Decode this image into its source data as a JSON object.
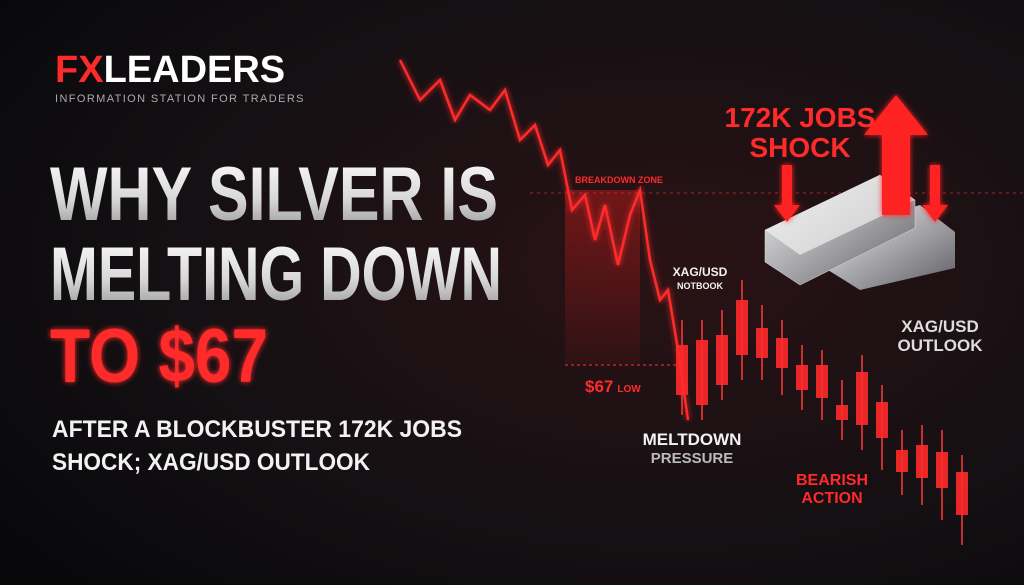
{
  "logo": {
    "fx": "FX",
    "leaders": "LEADERS",
    "tagline": "INFORMATION STATION FOR TRADERS"
  },
  "headline": {
    "line1": "WHY SILVER IS",
    "line2": "MELTING DOWN",
    "line3": "TO $67"
  },
  "subtitle": {
    "line1": "AFTER A BLOCKBUSTER 172K JOBS",
    "line2": "SHOCK; XAG/USD OUTLOOK"
  },
  "labels": {
    "jobs_shock": [
      "172K JOBS",
      "SHOCK"
    ],
    "breakdown_zone": "BREAKDOWN ZONE",
    "notebook": [
      "XAG/USD",
      "NOTBOOK"
    ],
    "outlook": [
      "XAG/USD",
      "OUTLOOK"
    ],
    "low": [
      "$67",
      "LOW"
    ],
    "meltdown": [
      "MELTDOWN",
      "PRESSURE"
    ],
    "bearish": [
      "BEARISH",
      "ACTION"
    ]
  }
}
